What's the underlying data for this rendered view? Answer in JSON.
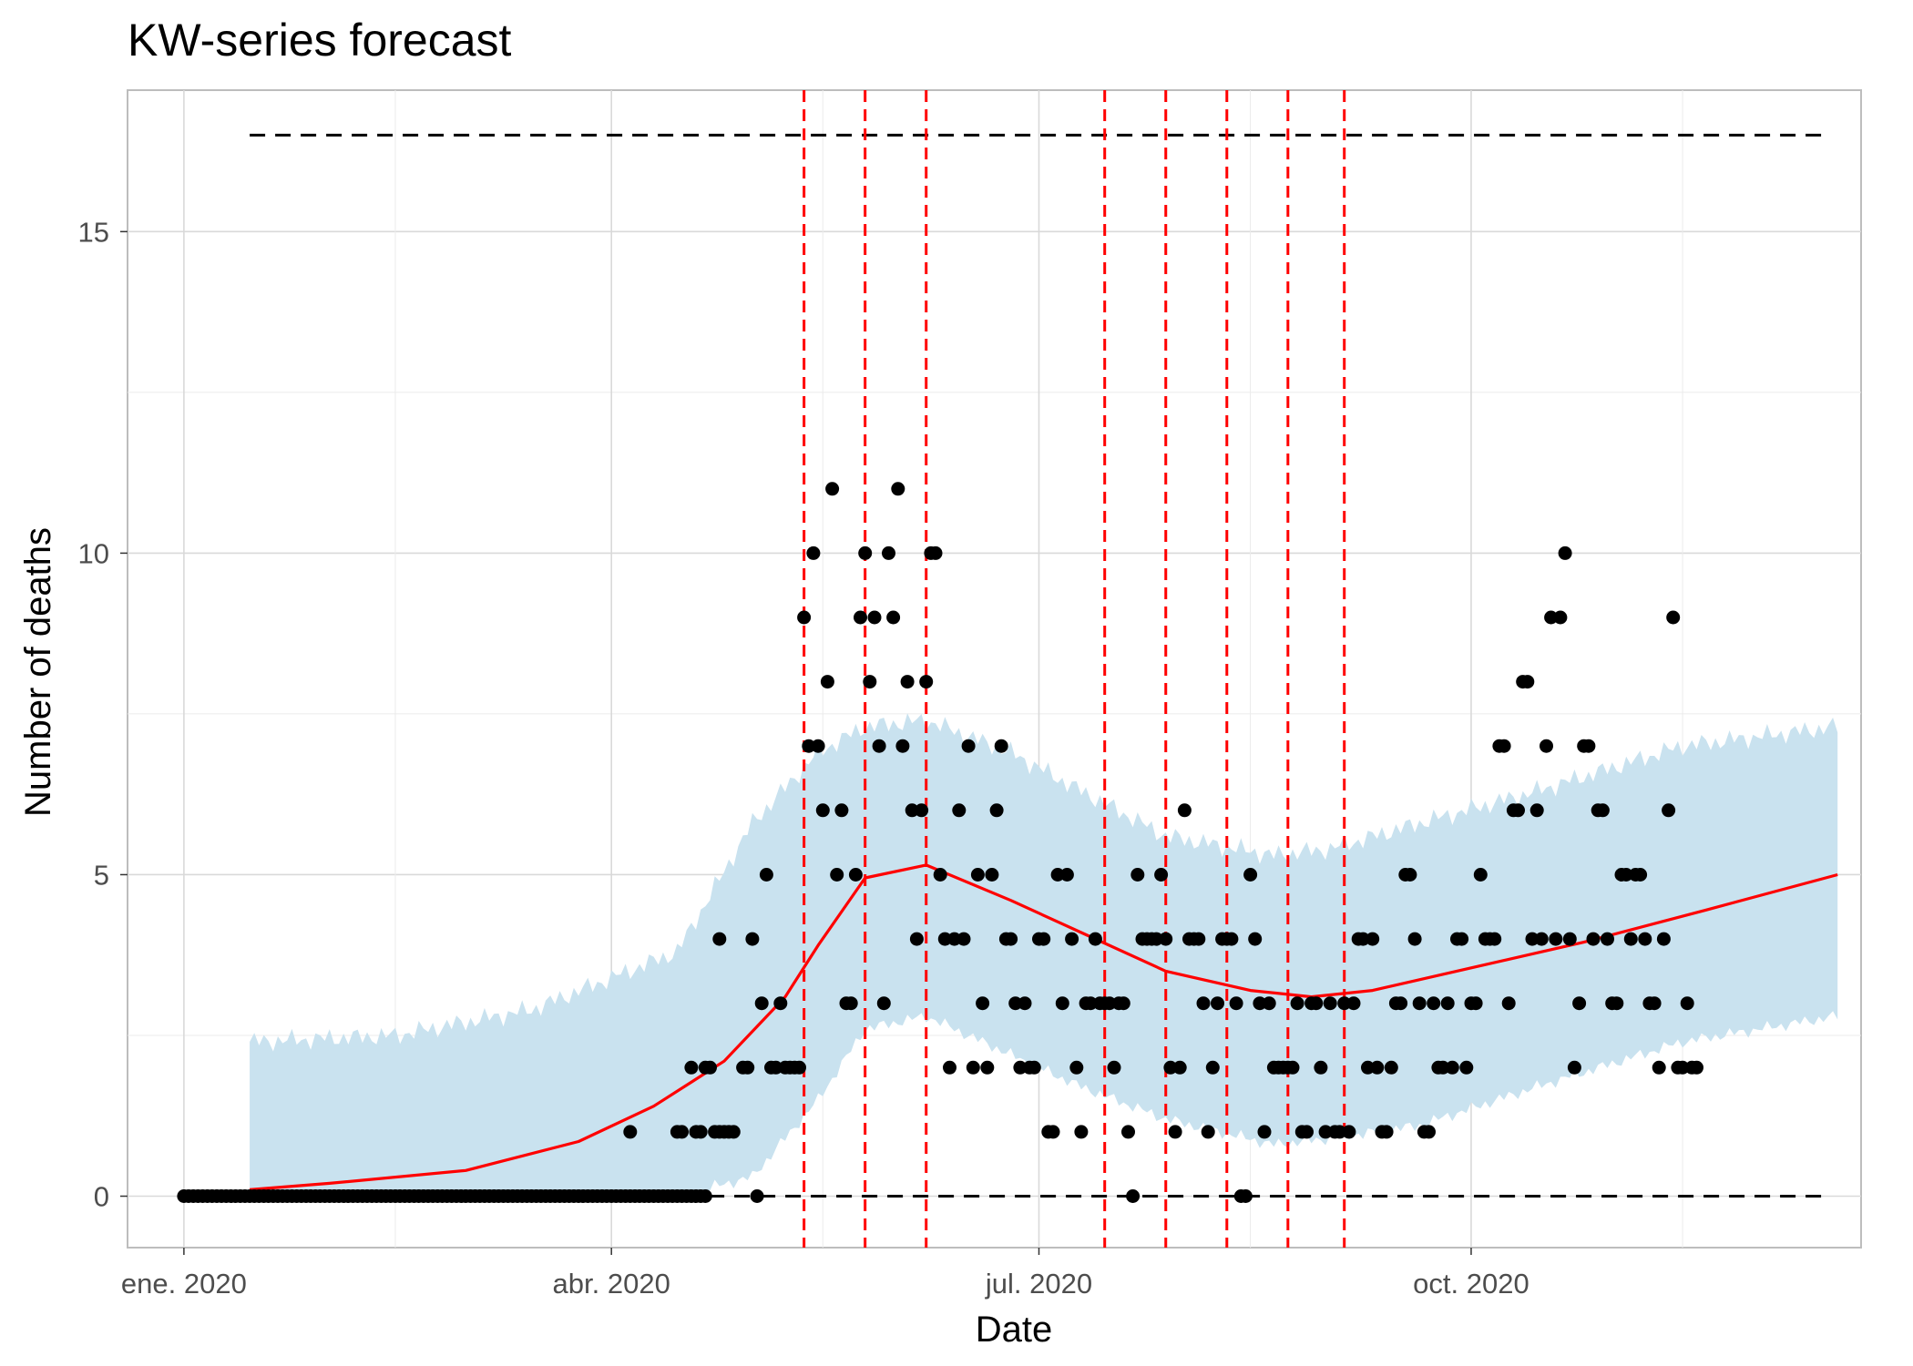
{
  "chart_data": {
    "type": "scatter",
    "title": "KW-series forecast",
    "xlabel": "Date",
    "ylabel": "Number of deaths",
    "x_ticks": [
      {
        "date": "2020-01-01",
        "label": "ene. 2020"
      },
      {
        "date": "2020-04-01",
        "label": "abr. 2020"
      },
      {
        "date": "2020-07-01",
        "label": "jul. 2020"
      },
      {
        "date": "2020-10-01",
        "label": "oct. 2020"
      }
    ],
    "y_ticks": [
      0,
      5,
      10,
      15
    ],
    "xlim": [
      "2019-12-20",
      "2020-12-23"
    ],
    "ylim": [
      -0.8,
      17.2
    ],
    "grid": true,
    "legend": "none",
    "upper_threshold": {
      "value": 16.5,
      "start": "2020-01-15",
      "end": "2020-12-15",
      "color": "#000000"
    },
    "lower_threshold": {
      "value": 0,
      "start": "2020-01-15",
      "end": "2020-12-15",
      "color": "#000000"
    },
    "alarm_dates": [
      "2020-05-12",
      "2020-05-25",
      "2020-06-07",
      "2020-07-15",
      "2020-07-28",
      "2020-08-10",
      "2020-08-23",
      "2020-09-04"
    ],
    "alarm_color": "#ff0000",
    "trend_color": "#ff0000",
    "band_color": "#c9e2ef",
    "point_color": "#000000",
    "band_knots": [
      {
        "date": "2020-01-15",
        "lower": 0,
        "upper": 2.4
      },
      {
        "date": "2020-02-15",
        "lower": 0,
        "upper": 2.5
      },
      {
        "date": "2020-03-15",
        "lower": 0,
        "upper": 2.9
      },
      {
        "date": "2020-04-15",
        "lower": 0,
        "upper": 3.8
      },
      {
        "date": "2020-05-01",
        "lower": 0.3,
        "upper": 5.8
      },
      {
        "date": "2020-05-15",
        "lower": 1.5,
        "upper": 6.9
      },
      {
        "date": "2020-05-25",
        "lower": 2.6,
        "upper": 7.3
      },
      {
        "date": "2020-06-07",
        "lower": 2.8,
        "upper": 7.4
      },
      {
        "date": "2020-06-25",
        "lower": 2.2,
        "upper": 6.9
      },
      {
        "date": "2020-07-10",
        "lower": 1.7,
        "upper": 6.3
      },
      {
        "date": "2020-07-28",
        "lower": 1.2,
        "upper": 5.6
      },
      {
        "date": "2020-08-20",
        "lower": 0.8,
        "upper": 5.3
      },
      {
        "date": "2020-09-01",
        "lower": 0.9,
        "upper": 5.4
      },
      {
        "date": "2020-09-20",
        "lower": 1.1,
        "upper": 5.8
      },
      {
        "date": "2020-10-15",
        "lower": 1.7,
        "upper": 6.3
      },
      {
        "date": "2020-11-15",
        "lower": 2.4,
        "upper": 7.0
      },
      {
        "date": "2020-12-18",
        "lower": 2.8,
        "upper": 7.3
      }
    ],
    "trend": [
      {
        "date": "2020-01-15",
        "value": 0.1
      },
      {
        "date": "2020-02-01",
        "value": 0.2
      },
      {
        "date": "2020-03-01",
        "value": 0.4
      },
      {
        "date": "2020-03-25",
        "value": 0.85
      },
      {
        "date": "2020-04-10",
        "value": 1.4
      },
      {
        "date": "2020-04-25",
        "value": 2.1
      },
      {
        "date": "2020-05-08",
        "value": 3.1
      },
      {
        "date": "2020-05-15",
        "value": 3.9
      },
      {
        "date": "2020-05-25",
        "value": 4.95
      },
      {
        "date": "2020-06-07",
        "value": 5.15
      },
      {
        "date": "2020-06-25",
        "value": 4.6
      },
      {
        "date": "2020-07-10",
        "value": 4.1
      },
      {
        "date": "2020-07-28",
        "value": 3.5
      },
      {
        "date": "2020-08-15",
        "value": 3.2
      },
      {
        "date": "2020-08-28",
        "value": 3.1
      },
      {
        "date": "2020-09-10",
        "value": 3.2
      },
      {
        "date": "2020-10-01",
        "value": 3.55
      },
      {
        "date": "2020-10-25",
        "value": 3.95
      },
      {
        "date": "2020-11-20",
        "value": 4.45
      },
      {
        "date": "2020-12-18",
        "value": 5.0
      }
    ],
    "observations": [
      [
        "2020-05-02",
        0
      ],
      [
        "2020-05-12",
        9
      ],
      [
        "2020-05-13",
        7
      ],
      [
        "2020-05-14",
        10
      ],
      [
        "2020-05-15",
        7
      ],
      [
        "2020-05-16",
        6
      ],
      [
        "2020-05-17",
        8
      ],
      [
        "2020-05-18",
        11
      ],
      [
        "2020-05-19",
        5
      ],
      [
        "2020-05-20",
        6
      ],
      [
        "2020-05-21",
        3
      ],
      [
        "2020-05-22",
        3
      ],
      [
        "2020-05-23",
        5
      ],
      [
        "2020-05-24",
        9
      ],
      [
        "2020-05-25",
        10
      ],
      [
        "2020-05-26",
        8
      ],
      [
        "2020-05-27",
        9
      ],
      [
        "2020-05-28",
        7
      ],
      [
        "2020-05-29",
        3
      ],
      [
        "2020-05-30",
        10
      ],
      [
        "2020-05-31",
        9
      ],
      [
        "2020-06-01",
        11
      ],
      [
        "2020-06-02",
        7
      ],
      [
        "2020-06-03",
        8
      ],
      [
        "2020-06-04",
        6
      ],
      [
        "2020-06-05",
        4
      ],
      [
        "2020-06-06",
        6
      ],
      [
        "2020-06-07",
        8
      ],
      [
        "2020-06-08",
        10
      ],
      [
        "2020-06-09",
        10
      ],
      [
        "2020-06-10",
        5
      ],
      [
        "2020-06-11",
        4
      ],
      [
        "2020-06-12",
        2
      ],
      [
        "2020-06-13",
        4
      ],
      [
        "2020-06-14",
        6
      ],
      [
        "2020-06-15",
        4
      ],
      [
        "2020-06-16",
        7
      ],
      [
        "2020-06-17",
        2
      ],
      [
        "2020-06-18",
        5
      ],
      [
        "2020-06-19",
        3
      ],
      [
        "2020-06-20",
        2
      ],
      [
        "2020-06-21",
        5
      ],
      [
        "2020-06-22",
        6
      ],
      [
        "2020-06-23",
        7
      ],
      [
        "2020-06-24",
        4
      ],
      [
        "2020-06-25",
        4
      ],
      [
        "2020-06-26",
        3
      ],
      [
        "2020-06-27",
        2
      ],
      [
        "2020-06-28",
        3
      ],
      [
        "2020-06-29",
        2
      ],
      [
        "2020-06-30",
        2
      ],
      [
        "2020-07-01",
        4
      ],
      [
        "2020-07-02",
        4
      ],
      [
        "2020-07-03",
        1
      ],
      [
        "2020-07-04",
        1
      ],
      [
        "2020-07-05",
        5
      ],
      [
        "2020-07-06",
        3
      ],
      [
        "2020-07-07",
        5
      ],
      [
        "2020-07-08",
        4
      ],
      [
        "2020-07-09",
        2
      ],
      [
        "2020-07-10",
        1
      ],
      [
        "2020-07-11",
        3
      ],
      [
        "2020-07-12",
        3
      ],
      [
        "2020-07-13",
        4
      ],
      [
        "2020-07-14",
        3
      ],
      [
        "2020-07-15",
        3
      ],
      [
        "2020-07-16",
        3
      ],
      [
        "2020-07-17",
        2
      ],
      [
        "2020-07-18",
        3
      ],
      [
        "2020-07-19",
        3
      ],
      [
        "2020-07-20",
        1
      ],
      [
        "2020-07-21",
        0
      ],
      [
        "2020-07-22",
        5
      ],
      [
        "2020-07-23",
        4
      ],
      [
        "2020-07-24",
        4
      ],
      [
        "2020-07-25",
        4
      ],
      [
        "2020-07-26",
        4
      ],
      [
        "2020-07-27",
        5
      ],
      [
        "2020-07-28",
        4
      ],
      [
        "2020-07-29",
        2
      ],
      [
        "2020-07-30",
        1
      ],
      [
        "2020-07-31",
        2
      ],
      [
        "2020-08-01",
        6
      ],
      [
        "2020-08-02",
        4
      ],
      [
        "2020-08-03",
        4
      ],
      [
        "2020-08-04",
        4
      ],
      [
        "2020-08-05",
        3
      ],
      [
        "2020-08-06",
        1
      ],
      [
        "2020-08-07",
        2
      ],
      [
        "2020-08-08",
        3
      ],
      [
        "2020-08-09",
        4
      ],
      [
        "2020-08-10",
        4
      ],
      [
        "2020-08-11",
        4
      ],
      [
        "2020-08-12",
        3
      ],
      [
        "2020-08-13",
        0
      ],
      [
        "2020-08-14",
        0
      ],
      [
        "2020-08-15",
        5
      ],
      [
        "2020-08-16",
        4
      ],
      [
        "2020-08-17",
        3
      ],
      [
        "2020-08-18",
        1
      ],
      [
        "2020-08-19",
        3
      ],
      [
        "2020-08-20",
        2
      ],
      [
        "2020-08-21",
        2
      ],
      [
        "2020-08-22",
        2
      ],
      [
        "2020-08-23",
        2
      ],
      [
        "2020-08-24",
        2
      ],
      [
        "2020-08-25",
        3
      ],
      [
        "2020-08-26",
        1
      ],
      [
        "2020-08-27",
        1
      ],
      [
        "2020-08-28",
        3
      ],
      [
        "2020-08-29",
        3
      ],
      [
        "2020-08-30",
        2
      ],
      [
        "2020-08-31",
        1
      ],
      [
        "2020-09-01",
        3
      ],
      [
        "2020-09-02",
        1
      ],
      [
        "2020-09-03",
        1
      ],
      [
        "2020-09-04",
        3
      ],
      [
        "2020-09-05",
        1
      ],
      [
        "2020-09-06",
        3
      ],
      [
        "2020-09-07",
        4
      ],
      [
        "2020-09-08",
        4
      ],
      [
        "2020-09-09",
        2
      ],
      [
        "2020-09-10",
        4
      ],
      [
        "2020-09-11",
        2
      ],
      [
        "2020-09-12",
        1
      ],
      [
        "2020-09-13",
        1
      ],
      [
        "2020-09-14",
        2
      ],
      [
        "2020-09-15",
        3
      ],
      [
        "2020-09-16",
        3
      ],
      [
        "2020-09-17",
        5
      ],
      [
        "2020-09-18",
        5
      ],
      [
        "2020-09-19",
        4
      ],
      [
        "2020-09-20",
        3
      ],
      [
        "2020-09-21",
        1
      ],
      [
        "2020-09-22",
        1
      ],
      [
        "2020-09-23",
        3
      ],
      [
        "2020-09-24",
        2
      ],
      [
        "2020-09-25",
        2
      ],
      [
        "2020-09-26",
        3
      ],
      [
        "2020-09-27",
        2
      ],
      [
        "2020-09-28",
        4
      ],
      [
        "2020-09-29",
        4
      ],
      [
        "2020-09-30",
        2
      ],
      [
        "2020-10-01",
        3
      ],
      [
        "2020-10-02",
        3
      ],
      [
        "2020-10-03",
        5
      ],
      [
        "2020-10-04",
        4
      ],
      [
        "2020-10-05",
        4
      ],
      [
        "2020-10-06",
        4
      ],
      [
        "2020-10-07",
        7
      ],
      [
        "2020-10-08",
        7
      ],
      [
        "2020-10-09",
        3
      ],
      [
        "2020-10-10",
        6
      ],
      [
        "2020-10-11",
        6
      ],
      [
        "2020-10-12",
        8
      ],
      [
        "2020-10-13",
        8
      ],
      [
        "2020-10-14",
        4
      ],
      [
        "2020-10-15",
        6
      ],
      [
        "2020-10-16",
        4
      ],
      [
        "2020-10-17",
        7
      ],
      [
        "2020-10-18",
        9
      ],
      [
        "2020-10-19",
        4
      ],
      [
        "2020-10-20",
        9
      ],
      [
        "2020-10-21",
        10
      ],
      [
        "2020-10-22",
        4
      ],
      [
        "2020-10-23",
        2
      ],
      [
        "2020-10-24",
        3
      ],
      [
        "2020-10-25",
        7
      ],
      [
        "2020-10-26",
        7
      ],
      [
        "2020-10-27",
        4
      ],
      [
        "2020-10-28",
        6
      ],
      [
        "2020-10-29",
        6
      ],
      [
        "2020-10-30",
        4
      ],
      [
        "2020-10-31",
        3
      ],
      [
        "2020-11-01",
        3
      ],
      [
        "2020-11-02",
        5
      ],
      [
        "2020-11-03",
        5
      ],
      [
        "2020-11-04",
        4
      ],
      [
        "2020-11-05",
        5
      ],
      [
        "2020-11-06",
        5
      ],
      [
        "2020-11-07",
        4
      ],
      [
        "2020-11-08",
        3
      ],
      [
        "2020-11-09",
        3
      ],
      [
        "2020-11-10",
        2
      ],
      [
        "2020-11-11",
        4
      ],
      [
        "2020-11-12",
        6
      ],
      [
        "2020-11-13",
        9
      ],
      [
        "2020-11-14",
        2
      ],
      [
        "2020-11-15",
        2
      ],
      [
        "2020-11-16",
        3
      ],
      [
        "2020-11-17",
        2
      ],
      [
        "2020-11-18",
        2
      ]
    ],
    "early_observations": [
      [
        "2020-04-05",
        1
      ],
      [
        "2020-04-15",
        1
      ],
      [
        "2020-04-16",
        1
      ],
      [
        "2020-04-19",
        1
      ],
      [
        "2020-04-20",
        1
      ],
      [
        "2020-04-18",
        2
      ],
      [
        "2020-04-21",
        2
      ],
      [
        "2020-04-22",
        2
      ],
      [
        "2020-04-23",
        1
      ],
      [
        "2020-04-24",
        1
      ],
      [
        "2020-04-25",
        1
      ],
      [
        "2020-04-26",
        1
      ],
      [
        "2020-04-27",
        1
      ],
      [
        "2020-04-24",
        4
      ],
      [
        "2020-04-29",
        2
      ],
      [
        "2020-04-30",
        2
      ],
      [
        "2020-05-01",
        4
      ],
      [
        "2020-05-03",
        3
      ],
      [
        "2020-05-04",
        5
      ],
      [
        "2020-05-05",
        2
      ],
      [
        "2020-05-06",
        2
      ],
      [
        "2020-05-07",
        3
      ],
      [
        "2020-05-08",
        2
      ],
      [
        "2020-05-09",
        2
      ],
      [
        "2020-05-10",
        2
      ],
      [
        "2020-05-11",
        2
      ]
    ],
    "zero_span": {
      "start": "2020-01-01",
      "end": "2020-04-21",
      "value": 0
    }
  }
}
